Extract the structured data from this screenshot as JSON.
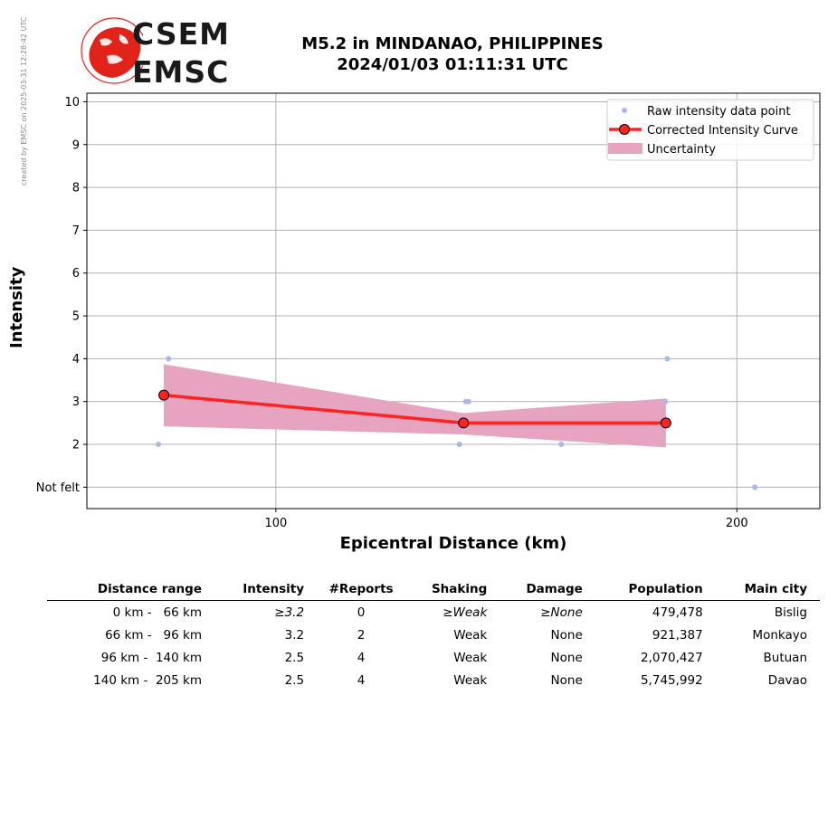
{
  "credit": "created by EMSC on 2025-03-31 12:28:42 UTC",
  "logo": {
    "top": "CSEM",
    "bottom": "EMSC"
  },
  "title_line1": "M5.2 in MINDANAO, PHILIPPINES",
  "title_line2": "2024/01/03 01:11:31 UTC",
  "colors": {
    "raw": "#aab8e8",
    "curve": "#ff2222",
    "band": "#e6a4c0",
    "logo_red": "#e2231a"
  },
  "chart_data": {
    "type": "scatter",
    "title": "M5.2 in MINDANAO, PHILIPPINES",
    "xlabel": "Epicentral Distance (km)",
    "ylabel": "Intensity",
    "xlim": [
      59,
      218
    ],
    "ylim": [
      0.5,
      10.2
    ],
    "xticks": [
      100,
      200
    ],
    "yticks": [
      {
        "value": 1,
        "label": "Not felt"
      },
      {
        "value": 2,
        "label": "2"
      },
      {
        "value": 3,
        "label": "3"
      },
      {
        "value": 4,
        "label": "4"
      },
      {
        "value": 5,
        "label": "5"
      },
      {
        "value": 6,
        "label": "6"
      },
      {
        "value": 7,
        "label": "7"
      },
      {
        "value": 8,
        "label": "8"
      },
      {
        "value": 9,
        "label": "9"
      },
      {
        "value": 10,
        "label": "10"
      }
    ],
    "grid": true,
    "legend_position": "top-right",
    "raw_points": [
      {
        "x": 74.5,
        "y": 2
      },
      {
        "x": 76.7,
        "y": 4
      },
      {
        "x": 139.8,
        "y": 2
      },
      {
        "x": 141.2,
        "y": 3
      },
      {
        "x": 141.8,
        "y": 3
      },
      {
        "x": 161.9,
        "y": 2
      },
      {
        "x": 184.5,
        "y": 3
      },
      {
        "x": 184.9,
        "y": 4
      },
      {
        "x": 203.9,
        "y": 1
      }
    ],
    "curve": [
      {
        "x": 75.7,
        "y": 3.15
      },
      {
        "x": 140.7,
        "y": 2.5
      },
      {
        "x": 184.6,
        "y": 2.5
      }
    ],
    "uncertainty": [
      {
        "x": 75.7,
        "lower": 2.42,
        "upper": 3.87
      },
      {
        "x": 140.7,
        "lower": 2.23,
        "upper": 2.73
      },
      {
        "x": 184.6,
        "lower": 1.93,
        "upper": 3.07
      }
    ],
    "legend": [
      {
        "label": "Raw intensity data point",
        "kind": "point"
      },
      {
        "label": "Corrected Intensity Curve",
        "kind": "line"
      },
      {
        "label": "Uncertainty",
        "kind": "band"
      }
    ]
  },
  "table": {
    "headers": [
      "Distance range",
      "Intensity",
      "#Reports",
      "Shaking",
      "Damage",
      "Population",
      "Main city"
    ],
    "rows": [
      {
        "range": "0 km -   66 km",
        "intensity": "≥3.2",
        "reports": "0",
        "shaking": "≥Weak",
        "damage": "≥None",
        "population": "479,478",
        "city": "Bislig",
        "italic": true
      },
      {
        "range": "66 km -   96 km",
        "intensity": "3.2",
        "reports": "2",
        "shaking": "Weak",
        "damage": "None",
        "population": "921,387",
        "city": "Monkayo",
        "italic": false
      },
      {
        "range": "96 km -  140 km",
        "intensity": "2.5",
        "reports": "4",
        "shaking": "Weak",
        "damage": "None",
        "population": "2,070,427",
        "city": "Butuan",
        "italic": false
      },
      {
        "range": "140 km -  205 km",
        "intensity": "2.5",
        "reports": "4",
        "shaking": "Weak",
        "damage": "None",
        "population": "5,745,992",
        "city": "Davao",
        "italic": false
      }
    ]
  }
}
